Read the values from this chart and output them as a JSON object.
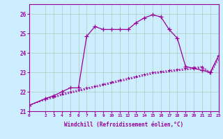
{
  "xlabel": "Windchill (Refroidissement éolien,°C)",
  "background_color": "#cceeff",
  "grid_color": "#aaccbb",
  "line_color": "#990099",
  "ylim": [
    21.0,
    26.5
  ],
  "xlim": [
    0,
    23
  ],
  "xticks": [
    0,
    2,
    3,
    4,
    5,
    6,
    7,
    8,
    9,
    10,
    11,
    12,
    13,
    14,
    15,
    16,
    17,
    18,
    19,
    20,
    21,
    22,
    23
  ],
  "yticks": [
    21,
    22,
    23,
    24,
    25,
    26
  ],
  "curve1_x": [
    0,
    2,
    3,
    4,
    5,
    6,
    7,
    8,
    9,
    10,
    11,
    12,
    13,
    14,
    15,
    16,
    17,
    18,
    19,
    20,
    21,
    22,
    23
  ],
  "curve1_y": [
    21.3,
    21.65,
    21.8,
    22.0,
    22.2,
    22.2,
    24.85,
    25.35,
    25.2,
    25.2,
    25.2,
    25.2,
    25.55,
    25.8,
    25.95,
    25.85,
    25.2,
    24.75,
    23.3,
    23.2,
    23.1,
    23.0,
    23.85
  ],
  "curve2_x": [
    0,
    2,
    3,
    4,
    5,
    6,
    7,
    8,
    9,
    10,
    11,
    12,
    13,
    14,
    15,
    16,
    17,
    18,
    19,
    20,
    21,
    22,
    23
  ],
  "curve2_y": [
    21.3,
    21.65,
    21.75,
    21.9,
    22.0,
    22.1,
    22.2,
    22.3,
    22.4,
    22.5,
    22.6,
    22.7,
    22.8,
    22.9,
    23.0,
    23.05,
    23.1,
    23.15,
    23.2,
    23.25,
    23.3,
    23.0,
    23.85
  ],
  "curve3_x": [
    0,
    2,
    3,
    4,
    5,
    6,
    7,
    8,
    9,
    10,
    11,
    12,
    13,
    14,
    15,
    16,
    17,
    18,
    19,
    20,
    21,
    22,
    23
  ],
  "curve3_y": [
    21.3,
    21.62,
    21.72,
    21.85,
    21.95,
    22.05,
    22.15,
    22.25,
    22.35,
    22.45,
    22.55,
    22.65,
    22.75,
    22.85,
    22.95,
    23.0,
    23.05,
    23.1,
    23.15,
    23.2,
    23.25,
    22.95,
    23.75
  ],
  "curve4_x": [
    0,
    2,
    3,
    4,
    5,
    6,
    7,
    8,
    9,
    10,
    11,
    12,
    13,
    14,
    15,
    16,
    17,
    18,
    19,
    20,
    21,
    22,
    23
  ],
  "curve4_y": [
    21.3,
    21.58,
    21.68,
    21.82,
    21.92,
    22.02,
    22.12,
    22.22,
    22.32,
    22.42,
    22.52,
    22.62,
    22.72,
    22.82,
    22.92,
    22.97,
    23.02,
    23.07,
    23.12,
    23.17,
    23.22,
    22.9,
    23.65
  ]
}
